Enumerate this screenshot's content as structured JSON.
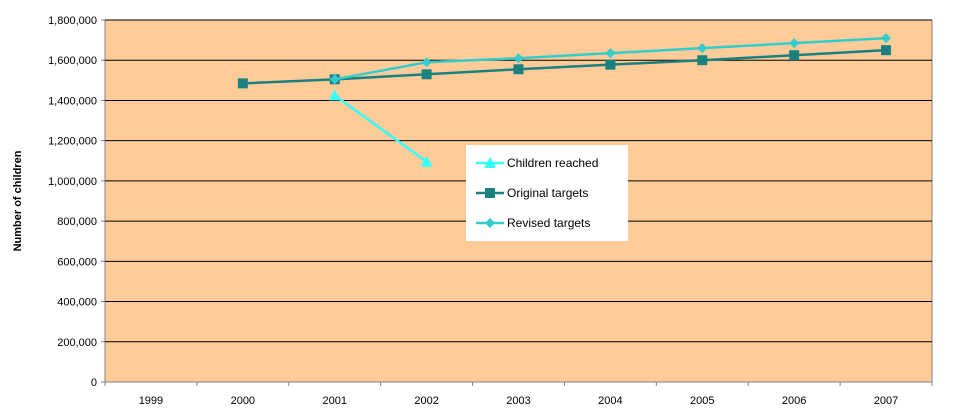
{
  "chart_data": {
    "type": "line",
    "ylabel": "Number of children",
    "xlabel": "",
    "categories": [
      "1999",
      "2000",
      "2001",
      "2002",
      "2003",
      "2004",
      "2005",
      "2006",
      "2007"
    ],
    "ylim": [
      0,
      1800000
    ],
    "yticks": [
      0,
      200000,
      400000,
      600000,
      800000,
      1000000,
      1200000,
      1400000,
      1600000,
      1800000
    ],
    "ytick_labels": [
      "0",
      "200,000",
      "400,000",
      "600,000",
      "800,000",
      "1,000,000",
      "1,200,000",
      "1,400,000",
      "1,600,000",
      "1,800,000"
    ],
    "grid": true,
    "legend_position": "center-right",
    "plot_background": "#FFCC99",
    "series": [
      {
        "name": "Children reached",
        "marker": "triangle",
        "color": "#33FFFF",
        "values": [
          null,
          null,
          1425000,
          1095000,
          null,
          null,
          null,
          null,
          null
        ]
      },
      {
        "name": "Original targets",
        "marker": "square",
        "color": "#1A8080",
        "values": [
          null,
          1485000,
          1505000,
          1530000,
          1555000,
          1578000,
          1600000,
          1625000,
          1650000
        ]
      },
      {
        "name": "Revised targets",
        "marker": "diamond",
        "color": "#33CCCC",
        "values": [
          null,
          null,
          1505000,
          1590000,
          1610000,
          1635000,
          1660000,
          1685000,
          1710000
        ]
      }
    ]
  }
}
